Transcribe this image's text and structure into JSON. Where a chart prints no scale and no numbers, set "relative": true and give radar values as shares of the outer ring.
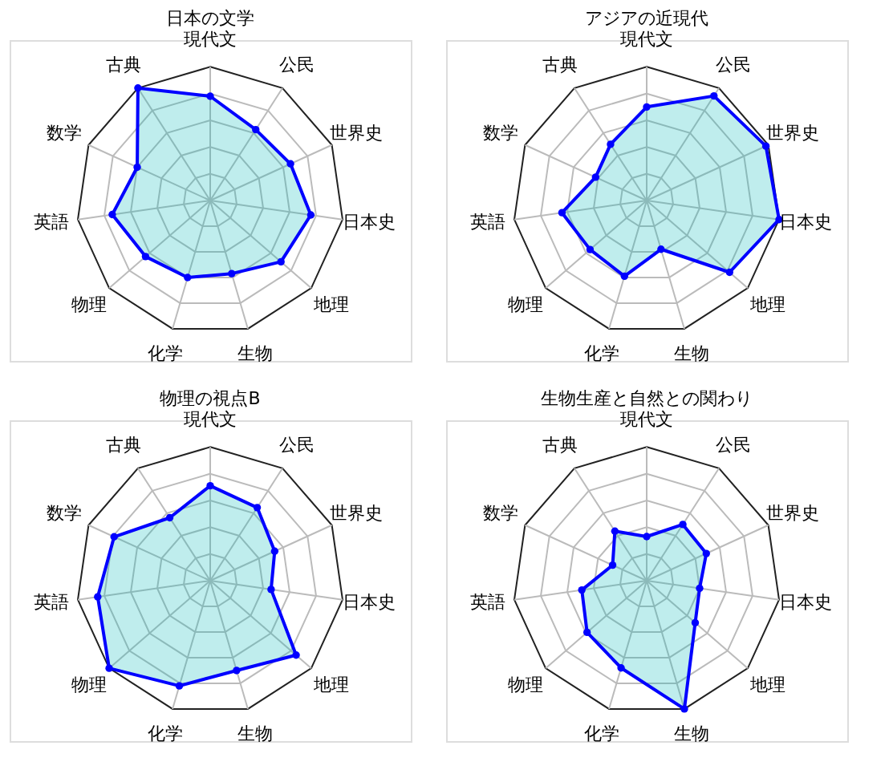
{
  "chart_data": [
    {
      "type": "radar",
      "title": "日本の文学",
      "categories": [
        "現代文",
        "公民",
        "世界史",
        "日本史",
        "地理",
        "生物",
        "化学",
        "物理",
        "英語",
        "数学",
        "古典"
      ],
      "relative": true,
      "grid": true,
      "marker": "circle",
      "line_style": "solid",
      "series": [
        {
          "color": "#0000ff",
          "values": [
            0.78,
            0.63,
            0.66,
            0.76,
            0.7,
            0.57,
            0.6,
            0.64,
            0.74,
            0.6,
            1.0
          ]
        }
      ]
    },
    {
      "type": "radar",
      "title": "アジアの近現代",
      "categories": [
        "現代文",
        "公民",
        "世界史",
        "日本史",
        "地理",
        "生物",
        "化学",
        "物理",
        "英語",
        "数学",
        "古典"
      ],
      "relative": true,
      "grid": true,
      "marker": "circle",
      "line_style": "solid",
      "series": [
        {
          "color": "#0000ff",
          "values": [
            0.7,
            0.93,
            0.98,
            1.0,
            0.82,
            0.38,
            0.59,
            0.56,
            0.64,
            0.42,
            0.5
          ]
        }
      ]
    },
    {
      "type": "radar",
      "title": "物理の視点B",
      "categories": [
        "現代文",
        "公民",
        "世界史",
        "日本史",
        "地理",
        "生物",
        "化学",
        "物理",
        "英語",
        "数学",
        "古典"
      ],
      "relative": true,
      "grid": true,
      "marker": "circle",
      "line_style": "solid",
      "series": [
        {
          "color": "#0000ff",
          "values": [
            0.71,
            0.65,
            0.53,
            0.46,
            0.85,
            0.7,
            0.82,
            1.0,
            0.85,
            0.79,
            0.56
          ]
        }
      ]
    },
    {
      "type": "radar",
      "title": "生物生産と自然との関わり",
      "categories": [
        "現代文",
        "公民",
        "世界史",
        "日本史",
        "地理",
        "生物",
        "化学",
        "物理",
        "英語",
        "数学",
        "古典"
      ],
      "relative": true,
      "grid": true,
      "marker": "circle",
      "line_style": "solid",
      "series": [
        {
          "color": "#0000ff",
          "values": [
            0.33,
            0.5,
            0.49,
            0.4,
            0.48,
            1.0,
            0.68,
            0.59,
            0.49,
            0.28,
            0.44
          ]
        }
      ]
    }
  ]
}
